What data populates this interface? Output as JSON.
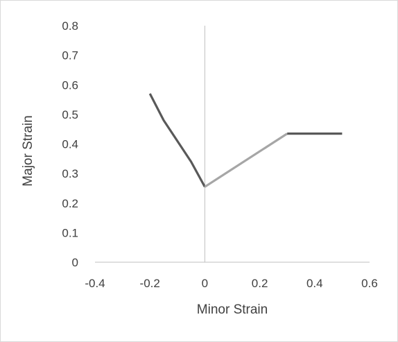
{
  "chart_data": {
    "type": "line",
    "title": "",
    "xlabel": "Minor Strain",
    "ylabel": "Major Strain",
    "xlim": [
      -0.4,
      0.6
    ],
    "ylim": [
      0,
      0.8
    ],
    "xticks": [
      "-0.4",
      "-0.2",
      "0",
      "0.2",
      "0.4",
      "0.6"
    ],
    "yticks": [
      "0",
      "0.1",
      "0.2",
      "0.3",
      "0.4",
      "0.5",
      "0.6",
      "0.7",
      "0.8"
    ],
    "grid": false,
    "legend": "none",
    "series": [
      {
        "color": "#595959",
        "x": [
          -0.2,
          -0.15,
          -0.1,
          -0.05,
          0
        ],
        "y": [
          0.57,
          0.48,
          0.41,
          0.34,
          0.255
        ]
      },
      {
        "color": "#a6a6a6",
        "x": [
          0,
          0.3
        ],
        "y": [
          0.255,
          0.435
        ]
      },
      {
        "color": "#595959",
        "x": [
          0.3,
          0.5
        ],
        "y": [
          0.435,
          0.435
        ]
      }
    ]
  }
}
